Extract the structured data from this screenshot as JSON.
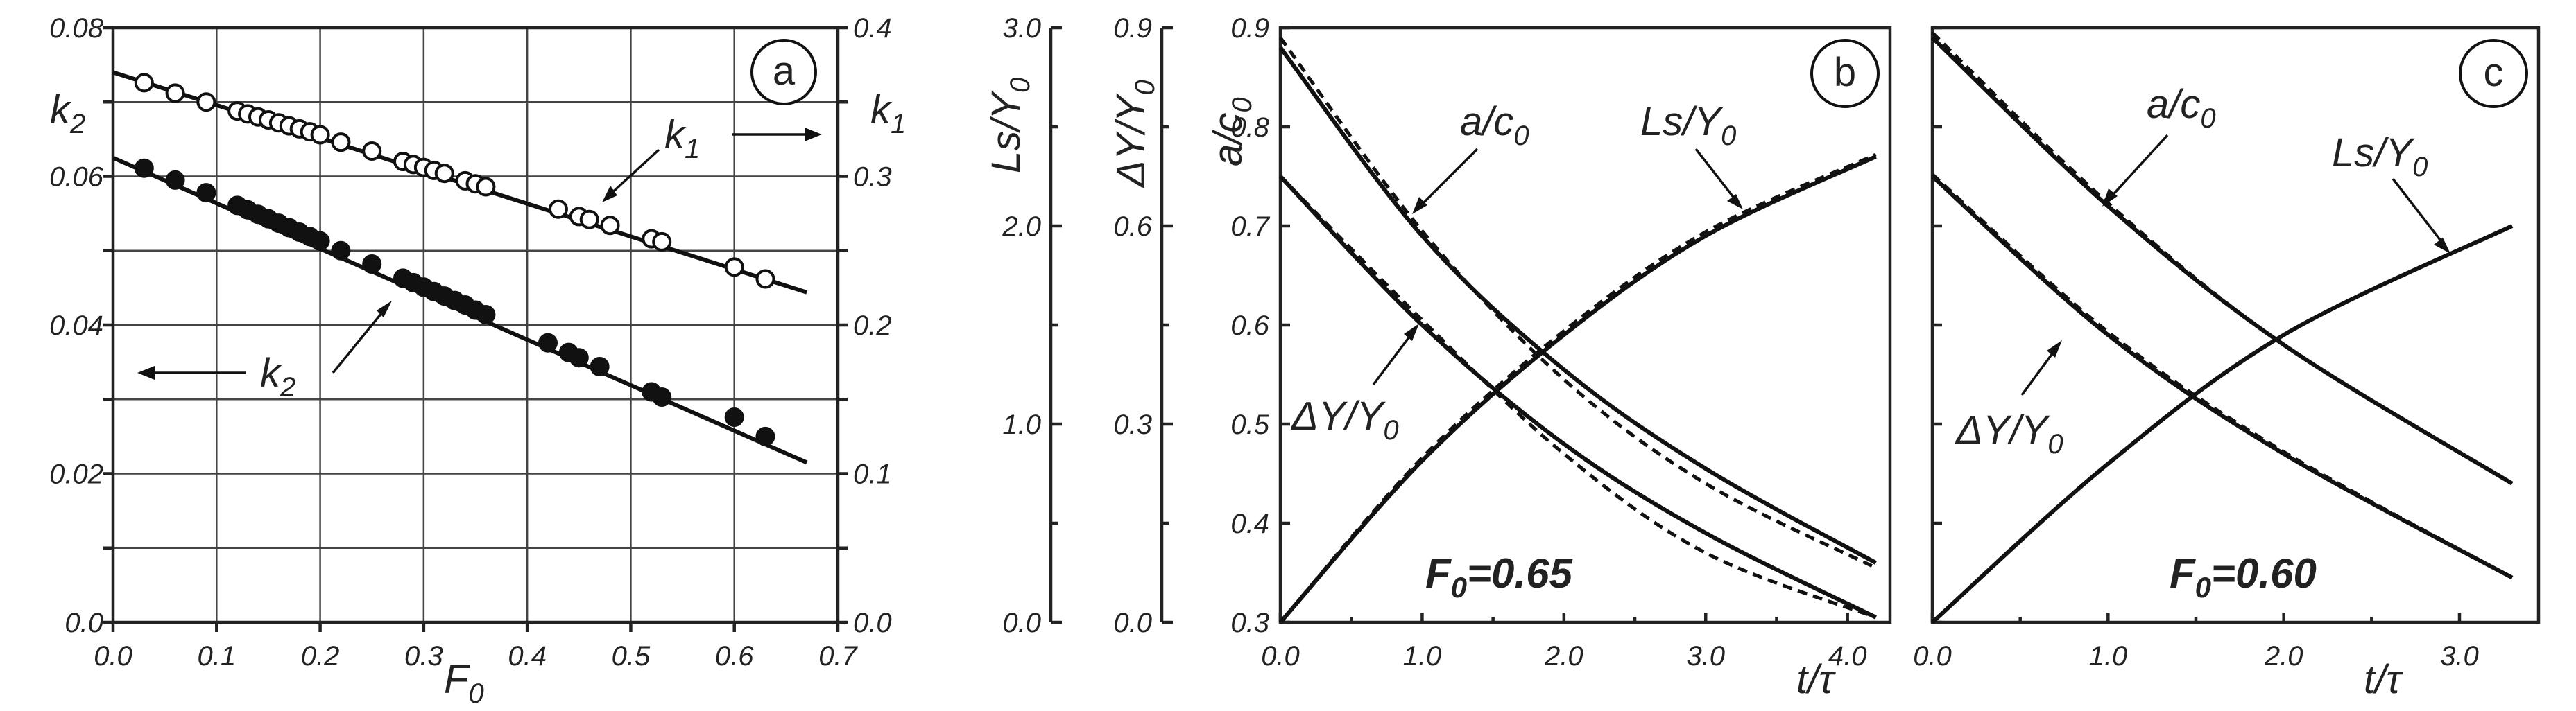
{
  "chart_data": [
    {
      "panel": "a",
      "type": "scatter",
      "panel_label": "a",
      "xlabel": "F",
      "xlabel_sub": "0",
      "xlim": [
        0.0,
        0.7
      ],
      "x_ticks": [
        "0.0",
        "0.1",
        "0.2",
        "0.3",
        "0.4",
        "0.5",
        "0.6",
        "0.7"
      ],
      "ylim_left": [
        0.0,
        0.08
      ],
      "y_ticks_left": [
        "0.0",
        "0.02",
        "0.04",
        "0.06",
        "0.08"
      ],
      "ylim_right": [
        0.0,
        0.4
      ],
      "y_ticks_right": [
        "0.0",
        "0.1",
        "0.2",
        "0.3",
        "0.4"
      ],
      "ylabel_left": "k",
      "ylabel_left_sub": "2",
      "ylabel_right": "k",
      "ylabel_right_sub": "1",
      "grid": true,
      "series": [
        {
          "name": "k",
          "name_sub": "1",
          "axis": "right",
          "marker": "open-circle",
          "fit": [
            [
              0.0,
              0.37
            ],
            [
              0.67,
              0.222
            ]
          ],
          "x": [
            0.03,
            0.06,
            0.09,
            0.12,
            0.13,
            0.14,
            0.15,
            0.16,
            0.17,
            0.18,
            0.19,
            0.2,
            0.22,
            0.25,
            0.28,
            0.29,
            0.3,
            0.31,
            0.32,
            0.34,
            0.35,
            0.36,
            0.43,
            0.45,
            0.46,
            0.48,
            0.52,
            0.53,
            0.6,
            0.63
          ],
          "y": [
            0.363,
            0.356,
            0.35,
            0.344,
            0.342,
            0.34,
            0.338,
            0.336,
            0.334,
            0.332,
            0.33,
            0.328,
            0.323,
            0.317,
            0.31,
            0.308,
            0.306,
            0.304,
            0.302,
            0.297,
            0.295,
            0.293,
            0.278,
            0.273,
            0.271,
            0.267,
            0.258,
            0.256,
            0.239,
            0.231
          ]
        },
        {
          "name": "k",
          "name_sub": "2",
          "axis": "left",
          "marker": "filled-circle",
          "fit": [
            [
              0.0,
              0.0625
            ],
            [
              0.67,
              0.0215
            ]
          ],
          "x": [
            0.03,
            0.06,
            0.09,
            0.12,
            0.13,
            0.14,
            0.15,
            0.16,
            0.17,
            0.18,
            0.19,
            0.2,
            0.22,
            0.25,
            0.28,
            0.29,
            0.3,
            0.31,
            0.32,
            0.33,
            0.34,
            0.35,
            0.36,
            0.42,
            0.44,
            0.45,
            0.47,
            0.52,
            0.53,
            0.6,
            0.63
          ],
          "y": [
            0.0611,
            0.0595,
            0.0578,
            0.0561,
            0.0555,
            0.0549,
            0.0543,
            0.0537,
            0.0531,
            0.0525,
            0.0519,
            0.0513,
            0.05,
            0.0482,
            0.0463,
            0.0457,
            0.0451,
            0.0445,
            0.0439,
            0.0433,
            0.0427,
            0.042,
            0.0414,
            0.0376,
            0.0363,
            0.0356,
            0.0344,
            0.031,
            0.0303,
            0.0276,
            0.025
          ]
        }
      ],
      "annotations": [
        {
          "text": "k",
          "sub": "1",
          "arrow": "right"
        },
        {
          "text": "k",
          "sub": "2",
          "arrow": "left"
        }
      ]
    },
    {
      "panel": "b",
      "type": "line",
      "panel_label": "b",
      "param_label": "F",
      "param_sub": "0",
      "param_value": "=0.65",
      "xlabel": "t/τ",
      "xlim": [
        0.0,
        4.3
      ],
      "x_ticks": [
        "0.0",
        "1.0",
        "2.0",
        "3.0",
        "4.0"
      ],
      "ylim": [
        0.3,
        0.9
      ],
      "y_ticks": [
        "0.3",
        "0.4",
        "0.5",
        "0.6",
        "0.7",
        "0.8",
        "0.9"
      ],
      "ylabel": "a/c",
      "ylabel_sub": "0",
      "extra_axes": [
        {
          "label": "ΔY/Y",
          "label_sub": "0",
          "ylim": [
            0.0,
            0.9
          ],
          "ticks": [
            "0.0",
            "0.3",
            "0.6",
            "0.9"
          ]
        },
        {
          "label": "Ls/Y",
          "label_sub": "0",
          "ylim": [
            0.0,
            3.0
          ],
          "ticks": [
            "0.0",
            "1.0",
            "2.0",
            "3.0"
          ]
        }
      ],
      "series": [
        {
          "name": "a/c",
          "name_sub": "0",
          "style": "solid",
          "x": [
            0.0,
            1.0,
            2.0,
            3.0,
            4.2
          ],
          "y": [
            0.88,
            0.69,
            0.555,
            0.455,
            0.36
          ]
        },
        {
          "name": "a/c",
          "name_sub": "0",
          "style": "dashed",
          "x": [
            0.0,
            1.0,
            2.0,
            3.0,
            4.2
          ],
          "y": [
            0.89,
            0.695,
            0.545,
            0.44,
            0.355
          ]
        },
        {
          "name": "ΔY/Y",
          "name_sub": "0",
          "style": "solid",
          "x": [
            0.0,
            1.0,
            2.0,
            3.0,
            4.2
          ],
          "y": [
            0.75,
            0.6,
            0.48,
            0.39,
            0.305
          ]
        },
        {
          "name": "ΔY/Y",
          "name_sub": "0",
          "style": "dashed",
          "x": [
            0.0,
            1.0,
            2.0,
            3.0,
            4.2
          ],
          "y": [
            0.75,
            0.605,
            0.47,
            0.37,
            0.305
          ]
        },
        {
          "name": "Ls/Y",
          "name_sub": "0",
          "style": "solid",
          "x": [
            0.0,
            1.0,
            2.0,
            3.0,
            4.2
          ],
          "y": [
            0.3,
            0.463,
            0.59,
            0.69,
            0.77
          ]
        },
        {
          "name": "Ls/Y",
          "name_sub": "0",
          "style": "dashed",
          "x": [
            0.0,
            1.0,
            2.0,
            3.0,
            4.2
          ],
          "y": [
            0.3,
            0.466,
            0.594,
            0.694,
            0.772
          ]
        }
      ],
      "annotations": [
        {
          "text": "a/c",
          "sub": "0"
        },
        {
          "text": "Ls/Y",
          "sub": "0"
        },
        {
          "text": "ΔY/Y",
          "sub": "0"
        }
      ]
    },
    {
      "panel": "c",
      "type": "line",
      "panel_label": "c",
      "param_label": "F",
      "param_sub": "0",
      "param_value": "=0.60",
      "xlabel": "t/τ",
      "xlim": [
        0.0,
        3.45
      ],
      "x_ticks": [
        "0.0",
        "1.0",
        "2.0",
        "3.0"
      ],
      "ylim": [
        0.3,
        0.9
      ],
      "series": [
        {
          "name": "a/c",
          "name_sub": "0",
          "style": "solid",
          "x": [
            0.0,
            1.0,
            2.0,
            3.3
          ],
          "y": [
            0.89,
            0.72,
            0.58,
            0.44
          ]
        },
        {
          "name": "a/c",
          "name_sub": "0",
          "style": "dashed",
          "x": [
            0.0,
            1.0,
            2.0,
            3.3
          ],
          "y": [
            0.895,
            0.723,
            0.58,
            0.44
          ]
        },
        {
          "name": "ΔY/Y",
          "name_sub": "0",
          "style": "solid",
          "x": [
            0.0,
            1.0,
            2.0,
            3.3
          ],
          "y": [
            0.75,
            0.59,
            0.47,
            0.345
          ]
        },
        {
          "name": "ΔY/Y",
          "name_sub": "0",
          "style": "dashed",
          "x": [
            0.0,
            1.0,
            2.0,
            3.3
          ],
          "y": [
            0.752,
            0.593,
            0.472,
            0.345
          ]
        },
        {
          "name": "Ls/Y",
          "name_sub": "0",
          "style": "solid",
          "x": [
            0.0,
            1.0,
            2.0,
            3.3
          ],
          "y": [
            0.3,
            0.46,
            0.59,
            0.7
          ]
        }
      ],
      "annotations": [
        {
          "text": "a/c",
          "sub": "0"
        },
        {
          "text": "Ls/Y",
          "sub": "0"
        },
        {
          "text": "ΔY/Y",
          "sub": "0"
        }
      ]
    }
  ]
}
